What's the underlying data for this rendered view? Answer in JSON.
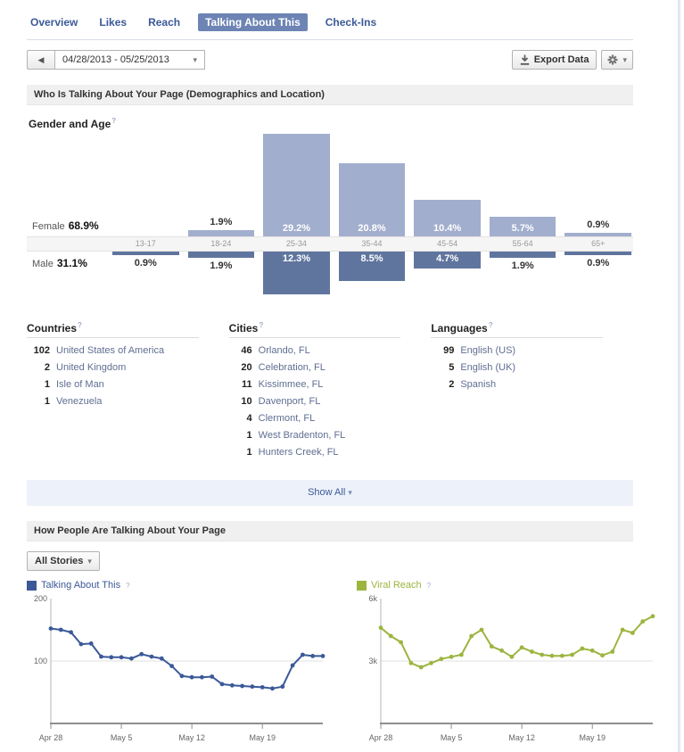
{
  "nav": {
    "tabs": [
      {
        "label": "Overview",
        "selected": false
      },
      {
        "label": "Likes",
        "selected": false
      },
      {
        "label": "Reach",
        "selected": false
      },
      {
        "label": "Talking About This",
        "selected": true
      },
      {
        "label": "Check-Ins",
        "selected": false
      }
    ]
  },
  "toolbar": {
    "date_range": "04/28/2013 - 05/25/2013",
    "export_label": "Export Data"
  },
  "misc": {
    "help_mark": "?",
    "prev_arrow": "◀",
    "caret_down": "▾"
  },
  "sections": {
    "demographics_title": "Who Is Talking About Your Page (Demographics and Location)",
    "stories_title": "How People Are Talking About Your Page"
  },
  "gender_age": {
    "title": "Gender and Age",
    "female_label": "Female",
    "female_total": "68.9%",
    "male_label": "Male",
    "male_total": "31.1%",
    "groups": [
      {
        "age": "13-17",
        "female": 0,
        "male": 0.9
      },
      {
        "age": "18-24",
        "female": 1.9,
        "male": 1.9
      },
      {
        "age": "25-34",
        "female": 29.2,
        "male": 12.3
      },
      {
        "age": "35-44",
        "female": 20.8,
        "male": 8.5
      },
      {
        "age": "45-54",
        "female": 10.4,
        "male": 4.7
      },
      {
        "age": "55-64",
        "female": 5.7,
        "male": 1.9
      },
      {
        "age": "65+",
        "female": 0.9,
        "male": 0.9
      }
    ]
  },
  "lists": [
    {
      "title": "Countries",
      "items": [
        {
          "count": "102",
          "name": "United States of America"
        },
        {
          "count": "2",
          "name": "United Kingdom"
        },
        {
          "count": "1",
          "name": "Isle of Man"
        },
        {
          "count": "1",
          "name": "Venezuela"
        }
      ]
    },
    {
      "title": "Cities",
      "items": [
        {
          "count": "46",
          "name": "Orlando, FL"
        },
        {
          "count": "20",
          "name": "Celebration, FL"
        },
        {
          "count": "11",
          "name": "Kissimmee, FL"
        },
        {
          "count": "10",
          "name": "Davenport, FL"
        },
        {
          "count": "4",
          "name": "Clermont, FL"
        },
        {
          "count": "1",
          "name": "West Bradenton, FL"
        },
        {
          "count": "1",
          "name": "Hunters Creek, FL"
        }
      ]
    },
    {
      "title": "Languages",
      "items": [
        {
          "count": "99",
          "name": "English (US)"
        },
        {
          "count": "5",
          "name": "English (UK)"
        },
        {
          "count": "2",
          "name": "Spanish"
        }
      ]
    }
  ],
  "show_all_label": "Show All",
  "stories_filter_label": "All Stories",
  "chart_data": [
    {
      "type": "line",
      "legend": "Talking About This",
      "color": "#3b5998",
      "ylim": [
        0,
        200
      ],
      "y_ticks": [
        {
          "value": 200,
          "label": "200",
          "gridline": false
        },
        {
          "value": 100,
          "label": "100",
          "gridline": true
        }
      ],
      "categories": [
        "Apr 28",
        "Apr 29",
        "Apr 30",
        "May 1",
        "May 2",
        "May 3",
        "May 4",
        "May 5",
        "May 6",
        "May 7",
        "May 8",
        "May 9",
        "May 10",
        "May 11",
        "May 12",
        "May 13",
        "May 14",
        "May 15",
        "May 16",
        "May 17",
        "May 18",
        "May 19",
        "May 20",
        "May 21",
        "May 22",
        "May 23",
        "May 24",
        "May 25"
      ],
      "x_tick_indices": [
        0,
        7,
        14,
        21
      ],
      "values": [
        152,
        150,
        146,
        127,
        128,
        107,
        106,
        106,
        104,
        111,
        107,
        104,
        92,
        76,
        74,
        74,
        75,
        63,
        61,
        60,
        59,
        58,
        56,
        59,
        93,
        110,
        108,
        108
      ]
    },
    {
      "type": "line",
      "legend": "Viral Reach",
      "color": "#9cb53f",
      "ylim": [
        0,
        6000
      ],
      "y_ticks": [
        {
          "value": 6000,
          "label": "6k",
          "gridline": false
        },
        {
          "value": 3000,
          "label": "3k",
          "gridline": true
        }
      ],
      "categories": [
        "Apr 28",
        "Apr 29",
        "Apr 30",
        "May 1",
        "May 2",
        "May 3",
        "May 4",
        "May 5",
        "May 6",
        "May 7",
        "May 8",
        "May 9",
        "May 10",
        "May 11",
        "May 12",
        "May 13",
        "May 14",
        "May 15",
        "May 16",
        "May 17",
        "May 18",
        "May 19",
        "May 20",
        "May 21",
        "May 22",
        "May 23",
        "May 24",
        "May 25"
      ],
      "x_tick_indices": [
        0,
        7,
        14,
        21
      ],
      "values": [
        4600,
        4200,
        3900,
        2900,
        2700,
        2900,
        3100,
        3200,
        3300,
        4200,
        4500,
        3700,
        3500,
        3200,
        3650,
        3450,
        3300,
        3250,
        3250,
        3300,
        3600,
        3500,
        3270,
        3450,
        4500,
        4350,
        4900,
        5150
      ]
    }
  ]
}
